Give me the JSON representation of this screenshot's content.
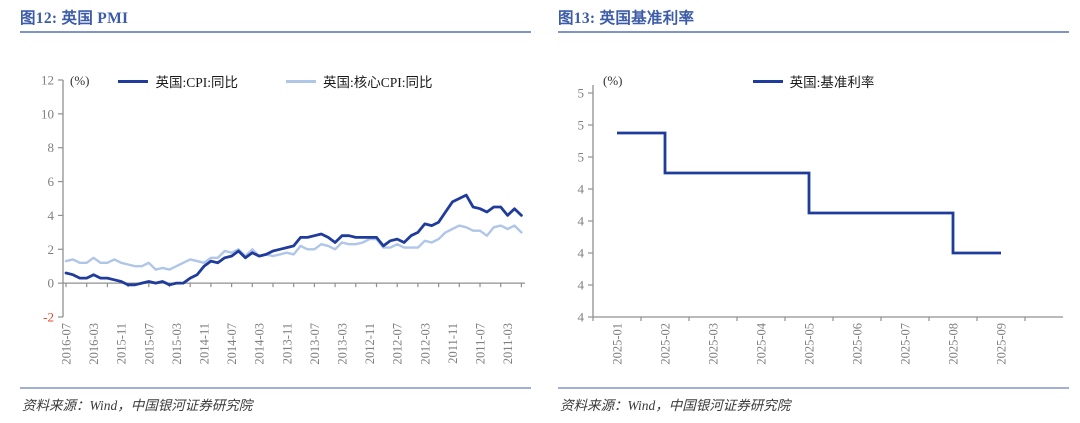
{
  "page": {
    "background": "#ffffff"
  },
  "colors": {
    "title_text": "#3D5CA8",
    "title_rule": "#8195C5",
    "source_rule": "#A3B0D5",
    "axis": "#909090",
    "tick_label": "#7f7f7f",
    "negative_tick_label": "#E8432C",
    "cpi_line": "#1F3C9C",
    "core_cpi_line": "#AFC6E8",
    "base_rate_line": "#1F3C9C"
  },
  "figures": [
    {
      "title": "图12: 英国 PMI",
      "source": "资料来源：Wind，中国银河证券研究院"
    },
    {
      "title": "图13: 英国基准利率",
      "source": "资料来源：Wind，中国银河证券研究院"
    }
  ],
  "chart_data": [
    {
      "type": "line",
      "title": "图12: 英国 PMI",
      "unit": "(%)",
      "ylabel": "",
      "xlabel": "",
      "grid": false,
      "legend_position": "top",
      "x_axis_reversed": true,
      "ylim": [
        -2,
        12
      ],
      "yticks": [
        12,
        10,
        8,
        6,
        4,
        2,
        0,
        -2
      ],
      "negative_tick_color": "#E8432C",
      "xtick_label_every": 4,
      "xtick_mark_every": 3,
      "x": [
        "2016-07",
        "2016-06",
        "2016-05",
        "2016-04",
        "2016-03",
        "2016-02",
        "2016-01",
        "2015-12",
        "2015-11",
        "2015-10",
        "2015-09",
        "2015-08",
        "2015-07",
        "2015-06",
        "2015-05",
        "2015-04",
        "2015-03",
        "2015-02",
        "2015-01",
        "2014-12",
        "2014-11",
        "2014-10",
        "2014-09",
        "2014-08",
        "2014-07",
        "2014-06",
        "2014-05",
        "2014-04",
        "2014-03",
        "2014-02",
        "2014-01",
        "2013-12",
        "2013-11",
        "2013-10",
        "2013-09",
        "2013-08",
        "2013-07",
        "2013-06",
        "2013-05",
        "2013-04",
        "2013-03",
        "2013-02",
        "2013-01",
        "2012-12",
        "2012-11",
        "2012-10",
        "2012-09",
        "2012-08",
        "2012-07",
        "2012-06",
        "2012-05",
        "2012-04",
        "2012-03",
        "2012-02",
        "2012-01",
        "2011-12",
        "2011-11",
        "2011-10",
        "2011-09",
        "2011-08",
        "2011-07",
        "2011-06",
        "2011-05",
        "2011-04",
        "2011-03",
        "2011-02",
        "2011-01"
      ],
      "series": [
        {
          "name": "英国:CPI:同比",
          "color": "#1F3C9C",
          "values": [
            0.6,
            0.5,
            0.3,
            0.3,
            0.5,
            0.3,
            0.3,
            0.2,
            0.1,
            -0.1,
            -0.1,
            0.0,
            0.1,
            0.0,
            0.1,
            -0.1,
            0.0,
            0.0,
            0.3,
            0.5,
            1.0,
            1.3,
            1.2,
            1.5,
            1.6,
            1.9,
            1.5,
            1.8,
            1.6,
            1.7,
            1.9,
            2.0,
            2.1,
            2.2,
            2.7,
            2.7,
            2.8,
            2.9,
            2.7,
            2.4,
            2.8,
            2.8,
            2.7,
            2.7,
            2.7,
            2.7,
            2.2,
            2.5,
            2.6,
            2.4,
            2.8,
            3.0,
            3.5,
            3.4,
            3.6,
            4.2,
            4.8,
            5.0,
            5.2,
            4.5,
            4.4,
            4.2,
            4.5,
            4.5,
            4.0,
            4.4,
            4.0
          ]
        },
        {
          "name": "英国:核心CPI:同比",
          "color": "#AFC6E8",
          "values": [
            1.3,
            1.4,
            1.2,
            1.2,
            1.5,
            1.2,
            1.2,
            1.4,
            1.2,
            1.1,
            1.0,
            1.0,
            1.2,
            0.8,
            0.9,
            0.8,
            1.0,
            1.2,
            1.4,
            1.3,
            1.2,
            1.5,
            1.5,
            1.9,
            1.8,
            2.0,
            1.6,
            2.0,
            1.6,
            1.7,
            1.6,
            1.7,
            1.8,
            1.7,
            2.2,
            2.0,
            2.0,
            2.3,
            2.2,
            2.0,
            2.4,
            2.3,
            2.3,
            2.4,
            2.6,
            2.6,
            2.1,
            2.1,
            2.3,
            2.1,
            2.1,
            2.1,
            2.5,
            2.4,
            2.6,
            3.0,
            3.2,
            3.4,
            3.3,
            3.1,
            3.1,
            2.8,
            3.3,
            3.4,
            3.2,
            3.4,
            3.0
          ]
        }
      ]
    },
    {
      "type": "step-line",
      "title": "图13: 英国基准利率",
      "unit": "(%)",
      "ylabel": "",
      "xlabel": "",
      "grid": false,
      "legend_position": "top",
      "ylim": [
        3.6,
        5.0
      ],
      "ytick_values": [
        5.0,
        4.8,
        4.6,
        4.4,
        4.2,
        4.0,
        3.8,
        3.6
      ],
      "ytick_labels": [
        "5",
        "5",
        "5",
        "4",
        "4",
        "4",
        "4",
        "4"
      ],
      "x_categories": [
        "2025-01",
        "2025-02",
        "2025-03",
        "2025-04",
        "2025-05",
        "2025-06",
        "2025-07",
        "2025-08",
        "2025-09"
      ],
      "series": [
        {
          "name": "英国:基准利率",
          "color": "#1F3C9C",
          "points": [
            [
              "2025-01",
              4.75
            ],
            [
              "2025-02",
              4.5
            ],
            [
              "2025-05",
              4.25
            ],
            [
              "2025-08",
              4.0
            ],
            [
              "2025-09",
              4.0
            ]
          ]
        }
      ]
    }
  ]
}
